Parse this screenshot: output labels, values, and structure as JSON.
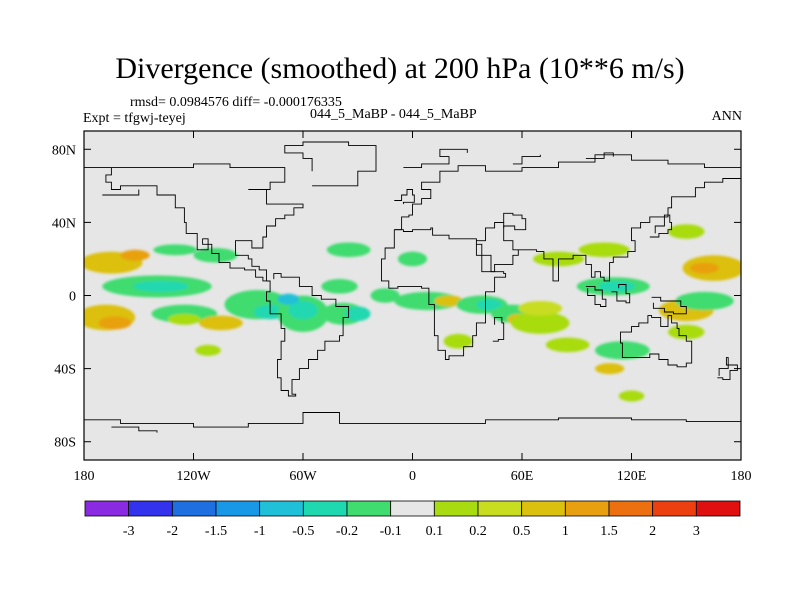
{
  "title": "Divergence (smoothed) at 200 hPa (10**6 m/s)",
  "stats_line": "rmsd= 0.0984576 diff= -0.000176335",
  "expt_label": "Expt = tfgwj-teyej",
  "case_label": "044_5_MaBP - 044_5_MaBP",
  "season_label": "ANN",
  "chart_data": {
    "type": "contour-map",
    "projection": "cylindrical-equidistant",
    "lon_range": [
      -180,
      180
    ],
    "lat_range": [
      -90,
      90
    ],
    "x_ticks": [
      {
        "lon": -180,
        "label": "180"
      },
      {
        "lon": -120,
        "label": "120W"
      },
      {
        "lon": -60,
        "label": "60W"
      },
      {
        "lon": 0,
        "label": "0"
      },
      {
        "lon": 60,
        "label": "60E"
      },
      {
        "lon": 120,
        "label": "120E"
      },
      {
        "lon": 180,
        "label": "180"
      }
    ],
    "y_ticks": [
      {
        "lat": 80,
        "label": "80N"
      },
      {
        "lat": 40,
        "label": "40N"
      },
      {
        "lat": 0,
        "label": "0"
      },
      {
        "lat": -40,
        "label": "40S"
      },
      {
        "lat": -80,
        "label": "80S"
      }
    ],
    "colorbar": {
      "colors": [
        "#8a2be2",
        "#3333ee",
        "#1e6fe0",
        "#1a98e8",
        "#20c0d8",
        "#20d8b0",
        "#40dc70",
        "#e6e6e6",
        "#a8dc10",
        "#c8dc20",
        "#dcc010",
        "#e8a010",
        "#ec7010",
        "#ec4010",
        "#e01010"
      ],
      "labels": [
        "-3",
        "-2",
        "-1.5",
        "-1",
        "-0.5",
        "-0.2",
        "-0.1",
        "0.1",
        "0.2",
        "0.5",
        "1",
        "1.5",
        "2",
        "3"
      ]
    },
    "blobs": [
      {
        "lon": -165,
        "lat": 18,
        "rx": 17,
        "ry": 6,
        "value": 0.6
      },
      {
        "lon": -152,
        "lat": 22,
        "rx": 8,
        "ry": 3,
        "value": 1.0
      },
      {
        "lon": -168,
        "lat": -12,
        "rx": 16,
        "ry": 7,
        "value": 0.6
      },
      {
        "lon": -163,
        "lat": -15,
        "rx": 9,
        "ry": 3.5,
        "value": 1.0
      },
      {
        "lon": -140,
        "lat": 5,
        "rx": 30,
        "ry": 6,
        "value": -0.15
      },
      {
        "lon": -138,
        "lat": 5,
        "rx": 15,
        "ry": 3,
        "value": -0.4
      },
      {
        "lon": -130,
        "lat": 25,
        "rx": 12,
        "ry": 3,
        "value": -0.15
      },
      {
        "lon": -125,
        "lat": -10,
        "rx": 18,
        "ry": 5,
        "value": -0.15
      },
      {
        "lon": -108,
        "lat": 22,
        "rx": 12,
        "ry": 4,
        "value": -0.15
      },
      {
        "lon": -85,
        "lat": -5,
        "rx": 18,
        "ry": 8,
        "value": -0.15
      },
      {
        "lon": -78,
        "lat": -9,
        "rx": 9,
        "ry": 4,
        "value": -0.4
      },
      {
        "lon": -60,
        "lat": -10,
        "rx": 14,
        "ry": 10,
        "value": -0.15
      },
      {
        "lon": -60,
        "lat": -8,
        "rx": 8,
        "ry": 5,
        "value": -0.4
      },
      {
        "lon": -68,
        "lat": -2,
        "rx": 6,
        "ry": 3,
        "value": -0.8
      },
      {
        "lon": -40,
        "lat": 5,
        "rx": 10,
        "ry": 4,
        "value": -0.15
      },
      {
        "lon": -38,
        "lat": -10,
        "rx": 12,
        "ry": 6,
        "value": -0.15
      },
      {
        "lon": -30,
        "lat": -10,
        "rx": 7,
        "ry": 4,
        "value": -0.4
      },
      {
        "lon": -105,
        "lat": -15,
        "rx": 12,
        "ry": 4,
        "value": 0.6
      },
      {
        "lon": -112,
        "lat": -30,
        "rx": 7,
        "ry": 3,
        "value": 0.15
      },
      {
        "lon": -125,
        "lat": -13,
        "rx": 9,
        "ry": 3,
        "value": 0.15
      },
      {
        "lon": -35,
        "lat": 25,
        "rx": 12,
        "ry": 4,
        "value": -0.15
      },
      {
        "lon": -15,
        "lat": 0,
        "rx": 8,
        "ry": 4,
        "value": -0.15
      },
      {
        "lon": 0,
        "lat": 20,
        "rx": 8,
        "ry": 4,
        "value": -0.15
      },
      {
        "lon": 8,
        "lat": -3,
        "rx": 18,
        "ry": 5,
        "value": -0.15
      },
      {
        "lon": 20,
        "lat": -3,
        "rx": 8,
        "ry": 3,
        "value": 0.6
      },
      {
        "lon": 25,
        "lat": -25,
        "rx": 8,
        "ry": 4,
        "value": 0.15
      },
      {
        "lon": 38,
        "lat": -5,
        "rx": 14,
        "ry": 5,
        "value": -0.15
      },
      {
        "lon": 42,
        "lat": -5,
        "rx": 7,
        "ry": 3,
        "value": -0.5
      },
      {
        "lon": 55,
        "lat": -10,
        "rx": 12,
        "ry": 5,
        "value": -0.15
      },
      {
        "lon": 58,
        "lat": -13,
        "rx": 6,
        "ry": 3,
        "value": 0.6
      },
      {
        "lon": 70,
        "lat": -15,
        "rx": 16,
        "ry": 6,
        "value": 0.15
      },
      {
        "lon": 70,
        "lat": -7,
        "rx": 12,
        "ry": 4,
        "value": 0.4
      },
      {
        "lon": 80,
        "lat": 20,
        "rx": 14,
        "ry": 4,
        "value": 0.15
      },
      {
        "lon": 85,
        "lat": -27,
        "rx": 12,
        "ry": 4,
        "value": 0.15
      },
      {
        "lon": 110,
        "lat": 5,
        "rx": 20,
        "ry": 5,
        "value": -0.15
      },
      {
        "lon": 112,
        "lat": 5,
        "rx": 10,
        "ry": 3,
        "value": -0.4
      },
      {
        "lon": 105,
        "lat": 25,
        "rx": 14,
        "ry": 4,
        "value": 0.15
      },
      {
        "lon": 115,
        "lat": -30,
        "rx": 15,
        "ry": 5,
        "value": -0.15
      },
      {
        "lon": 108,
        "lat": -40,
        "rx": 8,
        "ry": 3,
        "value": 0.6
      },
      {
        "lon": 150,
        "lat": -8,
        "rx": 15,
        "ry": 6,
        "value": 0.6
      },
      {
        "lon": 160,
        "lat": -3,
        "rx": 16,
        "ry": 5,
        "value": -0.15
      },
      {
        "lon": 165,
        "lat": 15,
        "rx": 17,
        "ry": 7,
        "value": 0.6
      },
      {
        "lon": 160,
        "lat": 15,
        "rx": 8,
        "ry": 3,
        "value": 1.0
      },
      {
        "lon": 150,
        "lat": 35,
        "rx": 10,
        "ry": 4,
        "value": 0.15
      },
      {
        "lon": 150,
        "lat": -20,
        "rx": 10,
        "ry": 4,
        "value": 0.15
      },
      {
        "lon": 120,
        "lat": -55,
        "rx": 7,
        "ry": 3,
        "value": 0.15
      }
    ]
  },
  "coastlines": [
    [
      [
        -180,
        -68
      ],
      [
        -160,
        -70
      ],
      [
        -120,
        -72
      ],
      [
        -90,
        -70
      ],
      [
        -60,
        -64
      ],
      [
        -40,
        -70
      ],
      [
        0,
        -70
      ],
      [
        40,
        -68
      ],
      [
        80,
        -67
      ],
      [
        120,
        -68
      ],
      [
        150,
        -69
      ],
      [
        180,
        -70
      ]
    ],
    [
      [
        -165,
        -72
      ],
      [
        -150,
        -74
      ],
      [
        -140,
        -75
      ]
    ],
    [
      [
        -180,
        70
      ],
      [
        -160,
        70
      ],
      [
        -140,
        70
      ],
      [
        -120,
        72
      ],
      [
        -100,
        70
      ],
      [
        -80,
        70
      ],
      [
        -70,
        62
      ],
      [
        -78,
        58
      ],
      [
        -90,
        58
      ],
      [
        -80,
        50
      ],
      [
        -60,
        48
      ],
      [
        -65,
        44
      ],
      [
        -70,
        42
      ],
      [
        -75,
        38
      ],
      [
        -80,
        32
      ],
      [
        -82,
        26
      ],
      [
        -88,
        30
      ],
      [
        -97,
        28
      ],
      [
        -97,
        22
      ],
      [
        -90,
        20
      ],
      [
        -88,
        16
      ],
      [
        -84,
        14
      ],
      [
        -80,
        8
      ],
      [
        -78,
        8
      ],
      [
        -82,
        10
      ],
      [
        -86,
        14
      ],
      [
        -92,
        15
      ],
      [
        -100,
        18
      ],
      [
        -106,
        23
      ],
      [
        -110,
        28
      ],
      [
        -115,
        31
      ],
      [
        -112,
        25
      ],
      [
        -118,
        34
      ],
      [
        -124,
        40
      ],
      [
        -125,
        48
      ],
      [
        -130,
        55
      ],
      [
        -140,
        60
      ],
      [
        -150,
        60
      ],
      [
        -160,
        58
      ],
      [
        -165,
        62
      ],
      [
        -168,
        66
      ],
      [
        -165,
        70
      ]
    ],
    [
      [
        -80,
        8
      ],
      [
        -78,
        2
      ],
      [
        -80,
        -3
      ],
      [
        -78,
        -10
      ],
      [
        -72,
        -18
      ],
      [
        -70,
        -25
      ],
      [
        -72,
        -35
      ],
      [
        -74,
        -45
      ],
      [
        -72,
        -52
      ],
      [
        -68,
        -55
      ],
      [
        -64,
        -54
      ],
      [
        -66,
        -46
      ],
      [
        -62,
        -40
      ],
      [
        -57,
        -35
      ],
      [
        -52,
        -30
      ],
      [
        -48,
        -25
      ],
      [
        -40,
        -22
      ],
      [
        -38,
        -12
      ],
      [
        -35,
        -6
      ],
      [
        -42,
        -2
      ],
      [
        -50,
        0
      ],
      [
        -55,
        5
      ],
      [
        -62,
        10
      ],
      [
        -72,
        12
      ],
      [
        -76,
        9
      ]
    ],
    [
      [
        -55,
        60
      ],
      [
        -45,
        60
      ],
      [
        -30,
        68
      ],
      [
        -20,
        75
      ],
      [
        -20,
        82
      ],
      [
        -35,
        84
      ],
      [
        -60,
        82
      ],
      [
        -70,
        78
      ],
      [
        -60,
        75
      ],
      [
        -55,
        68
      ]
    ],
    [
      [
        -10,
        36
      ],
      [
        -6,
        43
      ],
      [
        -2,
        44
      ],
      [
        0,
        50
      ],
      [
        5,
        53
      ],
      [
        10,
        58
      ],
      [
        5,
        62
      ],
      [
        15,
        68
      ],
      [
        25,
        71
      ],
      [
        40,
        68
      ],
      [
        60,
        70
      ],
      [
        80,
        73
      ],
      [
        100,
        77
      ],
      [
        120,
        74
      ],
      [
        140,
        72
      ],
      [
        160,
        70
      ],
      [
        180,
        68
      ]
    ],
    [
      [
        -10,
        36
      ],
      [
        -5,
        35
      ],
      [
        0,
        36
      ],
      [
        10,
        37
      ],
      [
        11,
        33
      ],
      [
        20,
        31
      ],
      [
        32,
        31
      ],
      [
        35,
        28
      ],
      [
        38,
        22
      ],
      [
        43,
        13
      ],
      [
        50,
        12
      ],
      [
        51,
        10
      ],
      [
        45,
        2
      ],
      [
        40,
        -5
      ],
      [
        40,
        -15
      ],
      [
        35,
        -22
      ],
      [
        33,
        -28
      ],
      [
        28,
        -33
      ],
      [
        20,
        -35
      ],
      [
        18,
        -30
      ],
      [
        14,
        -22
      ],
      [
        12,
        -12
      ],
      [
        12,
        -5
      ],
      [
        9,
        0
      ],
      [
        9,
        4
      ],
      [
        5,
        5
      ],
      [
        -5,
        5
      ],
      [
        -8,
        4
      ],
      [
        -13,
        8
      ],
      [
        -17,
        14
      ],
      [
        -17,
        20
      ],
      [
        -15,
        26
      ],
      [
        -10,
        30
      ],
      [
        -10,
        36
      ]
    ],
    [
      [
        35,
        30
      ],
      [
        40,
        37
      ],
      [
        45,
        40
      ],
      [
        50,
        30
      ],
      [
        55,
        25
      ],
      [
        60,
        25
      ],
      [
        58,
        22
      ],
      [
        55,
        17
      ],
      [
        45,
        13
      ],
      [
        43,
        13
      ],
      [
        38,
        22
      ],
      [
        35,
        28
      ]
    ],
    [
      [
        60,
        25
      ],
      [
        68,
        24
      ],
      [
        72,
        20
      ],
      [
        77,
        8
      ],
      [
        80,
        13
      ],
      [
        80,
        20
      ],
      [
        88,
        22
      ],
      [
        92,
        22
      ],
      [
        95,
        17
      ],
      [
        98,
        10
      ],
      [
        100,
        13
      ],
      [
        103,
        10
      ],
      [
        105,
        8
      ],
      [
        108,
        12
      ],
      [
        108,
        18
      ],
      [
        110,
        21
      ],
      [
        118,
        24
      ],
      [
        122,
        30
      ],
      [
        120,
        37
      ],
      [
        125,
        40
      ],
      [
        130,
        43
      ],
      [
        140,
        48
      ],
      [
        142,
        54
      ],
      [
        155,
        59
      ],
      [
        160,
        62
      ],
      [
        170,
        64
      ],
      [
        180,
        66
      ]
    ],
    [
      [
        45,
        40
      ],
      [
        50,
        45
      ],
      [
        55,
        44
      ],
      [
        60,
        42
      ],
      [
        62,
        36
      ],
      [
        56,
        38
      ],
      [
        50,
        37
      ]
    ],
    [
      [
        114,
        -22
      ],
      [
        114,
        -26
      ],
      [
        115,
        -34
      ],
      [
        120,
        -34
      ],
      [
        130,
        -32
      ],
      [
        135,
        -35
      ],
      [
        140,
        -38
      ],
      [
        145,
        -39
      ],
      [
        150,
        -37
      ],
      [
        153,
        -30
      ],
      [
        153,
        -25
      ],
      [
        150,
        -22
      ],
      [
        146,
        -18
      ],
      [
        145,
        -15
      ],
      [
        142,
        -11
      ],
      [
        140,
        -17
      ],
      [
        136,
        -12
      ],
      [
        131,
        -11
      ],
      [
        129,
        -15
      ],
      [
        124,
        -17
      ],
      [
        120,
        -20
      ],
      [
        114,
        -22
      ]
    ],
    [
      [
        95,
        5
      ],
      [
        100,
        3
      ],
      [
        104,
        -2
      ],
      [
        106,
        -6
      ],
      [
        103,
        -5
      ],
      [
        100,
        0
      ],
      [
        96,
        4
      ]
    ],
    [
      [
        109,
        2
      ],
      [
        112,
        -3
      ],
      [
        117,
        -4
      ],
      [
        119,
        1
      ],
      [
        117,
        6
      ],
      [
        113,
        4
      ]
    ],
    [
      [
        131,
        -1
      ],
      [
        136,
        -3
      ],
      [
        141,
        -3
      ],
      [
        147,
        -6
      ],
      [
        150,
        -10
      ],
      [
        143,
        -9
      ],
      [
        138,
        -7
      ],
      [
        132,
        -4
      ]
    ],
    [
      [
        130,
        32
      ],
      [
        135,
        34
      ],
      [
        140,
        36
      ],
      [
        142,
        40
      ],
      [
        141,
        44
      ],
      [
        138,
        38
      ],
      [
        133,
        34
      ]
    ],
    [
      [
        44,
        -25
      ],
      [
        47,
        -24
      ],
      [
        50,
        -15
      ],
      [
        49,
        -12
      ],
      [
        45,
        -16
      ]
    ],
    [
      [
        -10,
        52
      ],
      [
        -6,
        55
      ],
      [
        -3,
        58
      ],
      [
        0,
        55
      ],
      [
        1,
        51
      ],
      [
        -5,
        50
      ]
    ],
    [
      [
        167,
        -45
      ],
      [
        170,
        -46
      ],
      [
        174,
        -41
      ],
      [
        178,
        -38
      ],
      [
        172,
        -34
      ],
      [
        173,
        -40
      ],
      [
        168,
        -44
      ]
    ],
    [
      [
        -170,
        55
      ],
      [
        -160,
        55
      ],
      [
        -150,
        58
      ]
    ],
    [
      [
        -5,
        70
      ],
      [
        5,
        72
      ],
      [
        20,
        76
      ],
      [
        15,
        80
      ],
      [
        25,
        80
      ],
      [
        30,
        78
      ]
    ],
    [
      [
        55,
        72
      ],
      [
        60,
        76
      ],
      [
        70,
        77
      ]
    ],
    [
      [
        95,
        75
      ],
      [
        105,
        78
      ],
      [
        110,
        76
      ]
    ]
  ]
}
